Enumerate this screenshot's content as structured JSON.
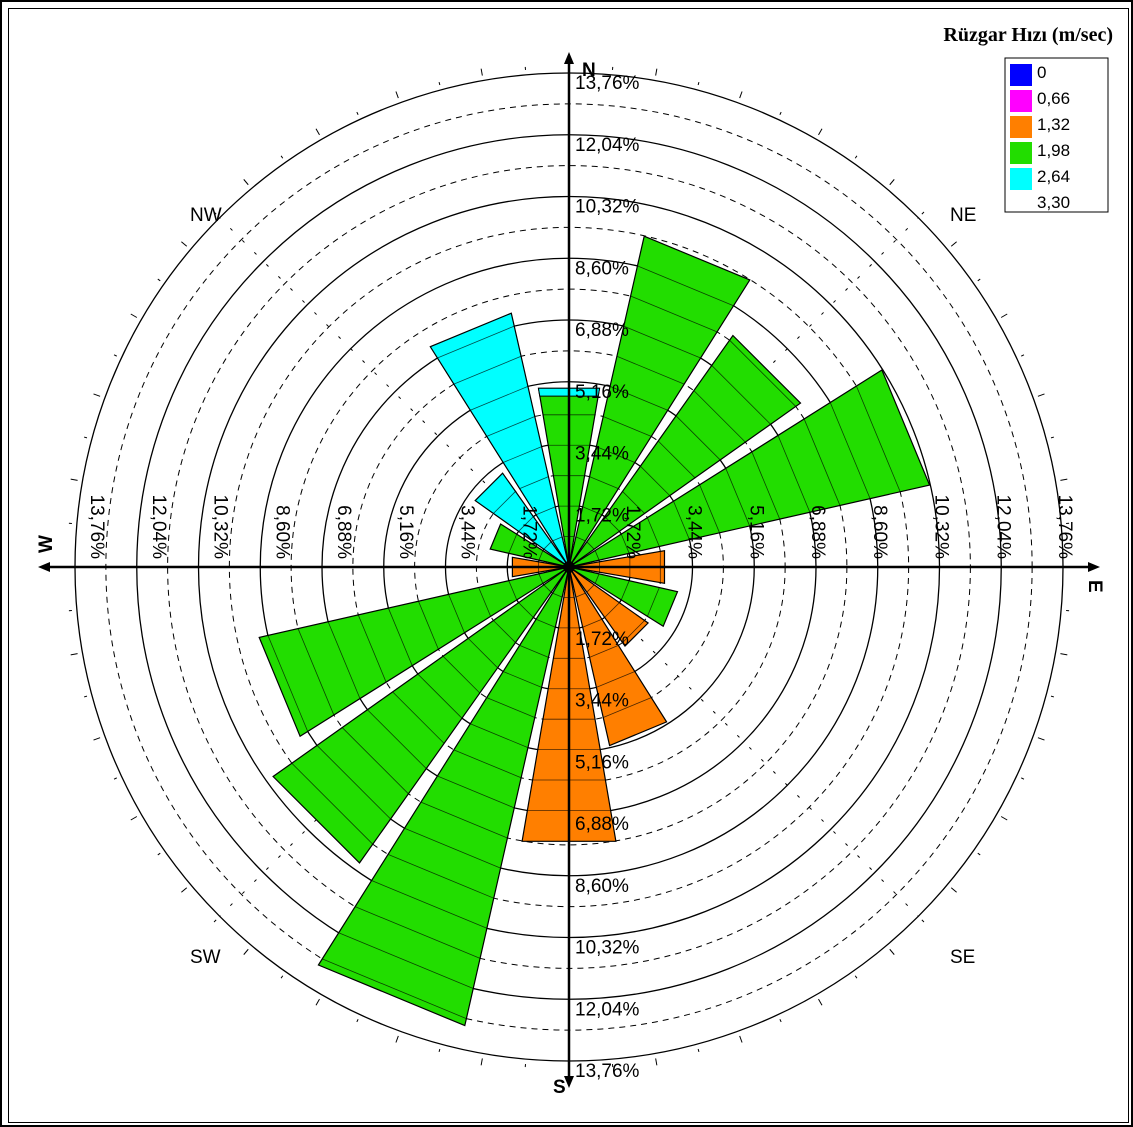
{
  "chart_data": {
    "type": "windrose",
    "legend": {
      "title": "Rüzgar Hızı (m/sec)",
      "bins": [
        {
          "label": "0",
          "color": "#0000ff"
        },
        {
          "label": "0,66",
          "color": "#ff00ff"
        },
        {
          "label": "1,32",
          "color": "#ff7f00"
        },
        {
          "label": "1,98",
          "color": "#22dd00"
        },
        {
          "label": "2,64",
          "color": "#00ffff"
        },
        {
          "label": "3,30",
          "color": ""
        }
      ]
    },
    "directions": {
      "N": "N",
      "NE": "NE",
      "E": "E",
      "SE": "SE",
      "S": "S",
      "SW": "SW",
      "W": "W",
      "NW": "NW"
    },
    "ring_values": [
      1.72,
      3.44,
      5.16,
      6.88,
      8.6,
      10.32,
      12.04,
      13.76
    ],
    "ring_labels": [
      "1,72%",
      "3,44%",
      "5,16%",
      "6,88%",
      "8,60%",
      "10,32%",
      "12,04%",
      "13,76%"
    ],
    "sectors": [
      {
        "dir": "N",
        "angle": 0,
        "value": 5.05,
        "color": "#22dd00",
        "cap": "#00ffff"
      },
      {
        "dir": "NNE",
        "angle": 22.5,
        "value": 9.45,
        "color": "#22dd00"
      },
      {
        "dir": "NE",
        "angle": 45,
        "value": 7.9,
        "color": "#22dd00"
      },
      {
        "dir": "ENE",
        "angle": 67.5,
        "value": 10.3,
        "color": "#22dd00"
      },
      {
        "dir": "E",
        "angle": 90,
        "value": 2.7,
        "color": "#ff7f00"
      },
      {
        "dir": "ESE",
        "angle": 112.5,
        "value": 3.1,
        "color": "#22dd00"
      },
      {
        "dir": "SE",
        "angle": 135,
        "value": 2.7,
        "color": "#ff7f00"
      },
      {
        "dir": "SSE",
        "angle": 157.5,
        "value": 5.1,
        "color": "#ff7f00"
      },
      {
        "dir": "S",
        "angle": 180,
        "value": 7.75,
        "color": "#ff7f00"
      },
      {
        "dir": "SSW",
        "angle": 202.5,
        "value": 13.1,
        "color": "#22dd00"
      },
      {
        "dir": "SW",
        "angle": 225,
        "value": 10.1,
        "color": "#22dd00"
      },
      {
        "dir": "WSW",
        "angle": 247.5,
        "value": 8.85,
        "color": "#22dd00"
      },
      {
        "dir": "W",
        "angle": 270,
        "value": 1.6,
        "color": "#ff7f00"
      },
      {
        "dir": "WNW",
        "angle": 292.5,
        "value": 2.25,
        "color": "#22dd00"
      },
      {
        "dir": "NW",
        "angle": 315,
        "value": 3.2,
        "color": "#00ffff"
      },
      {
        "dir": "NNW",
        "angle": 337.5,
        "value": 7.25,
        "color": "#00ffff"
      }
    ]
  }
}
